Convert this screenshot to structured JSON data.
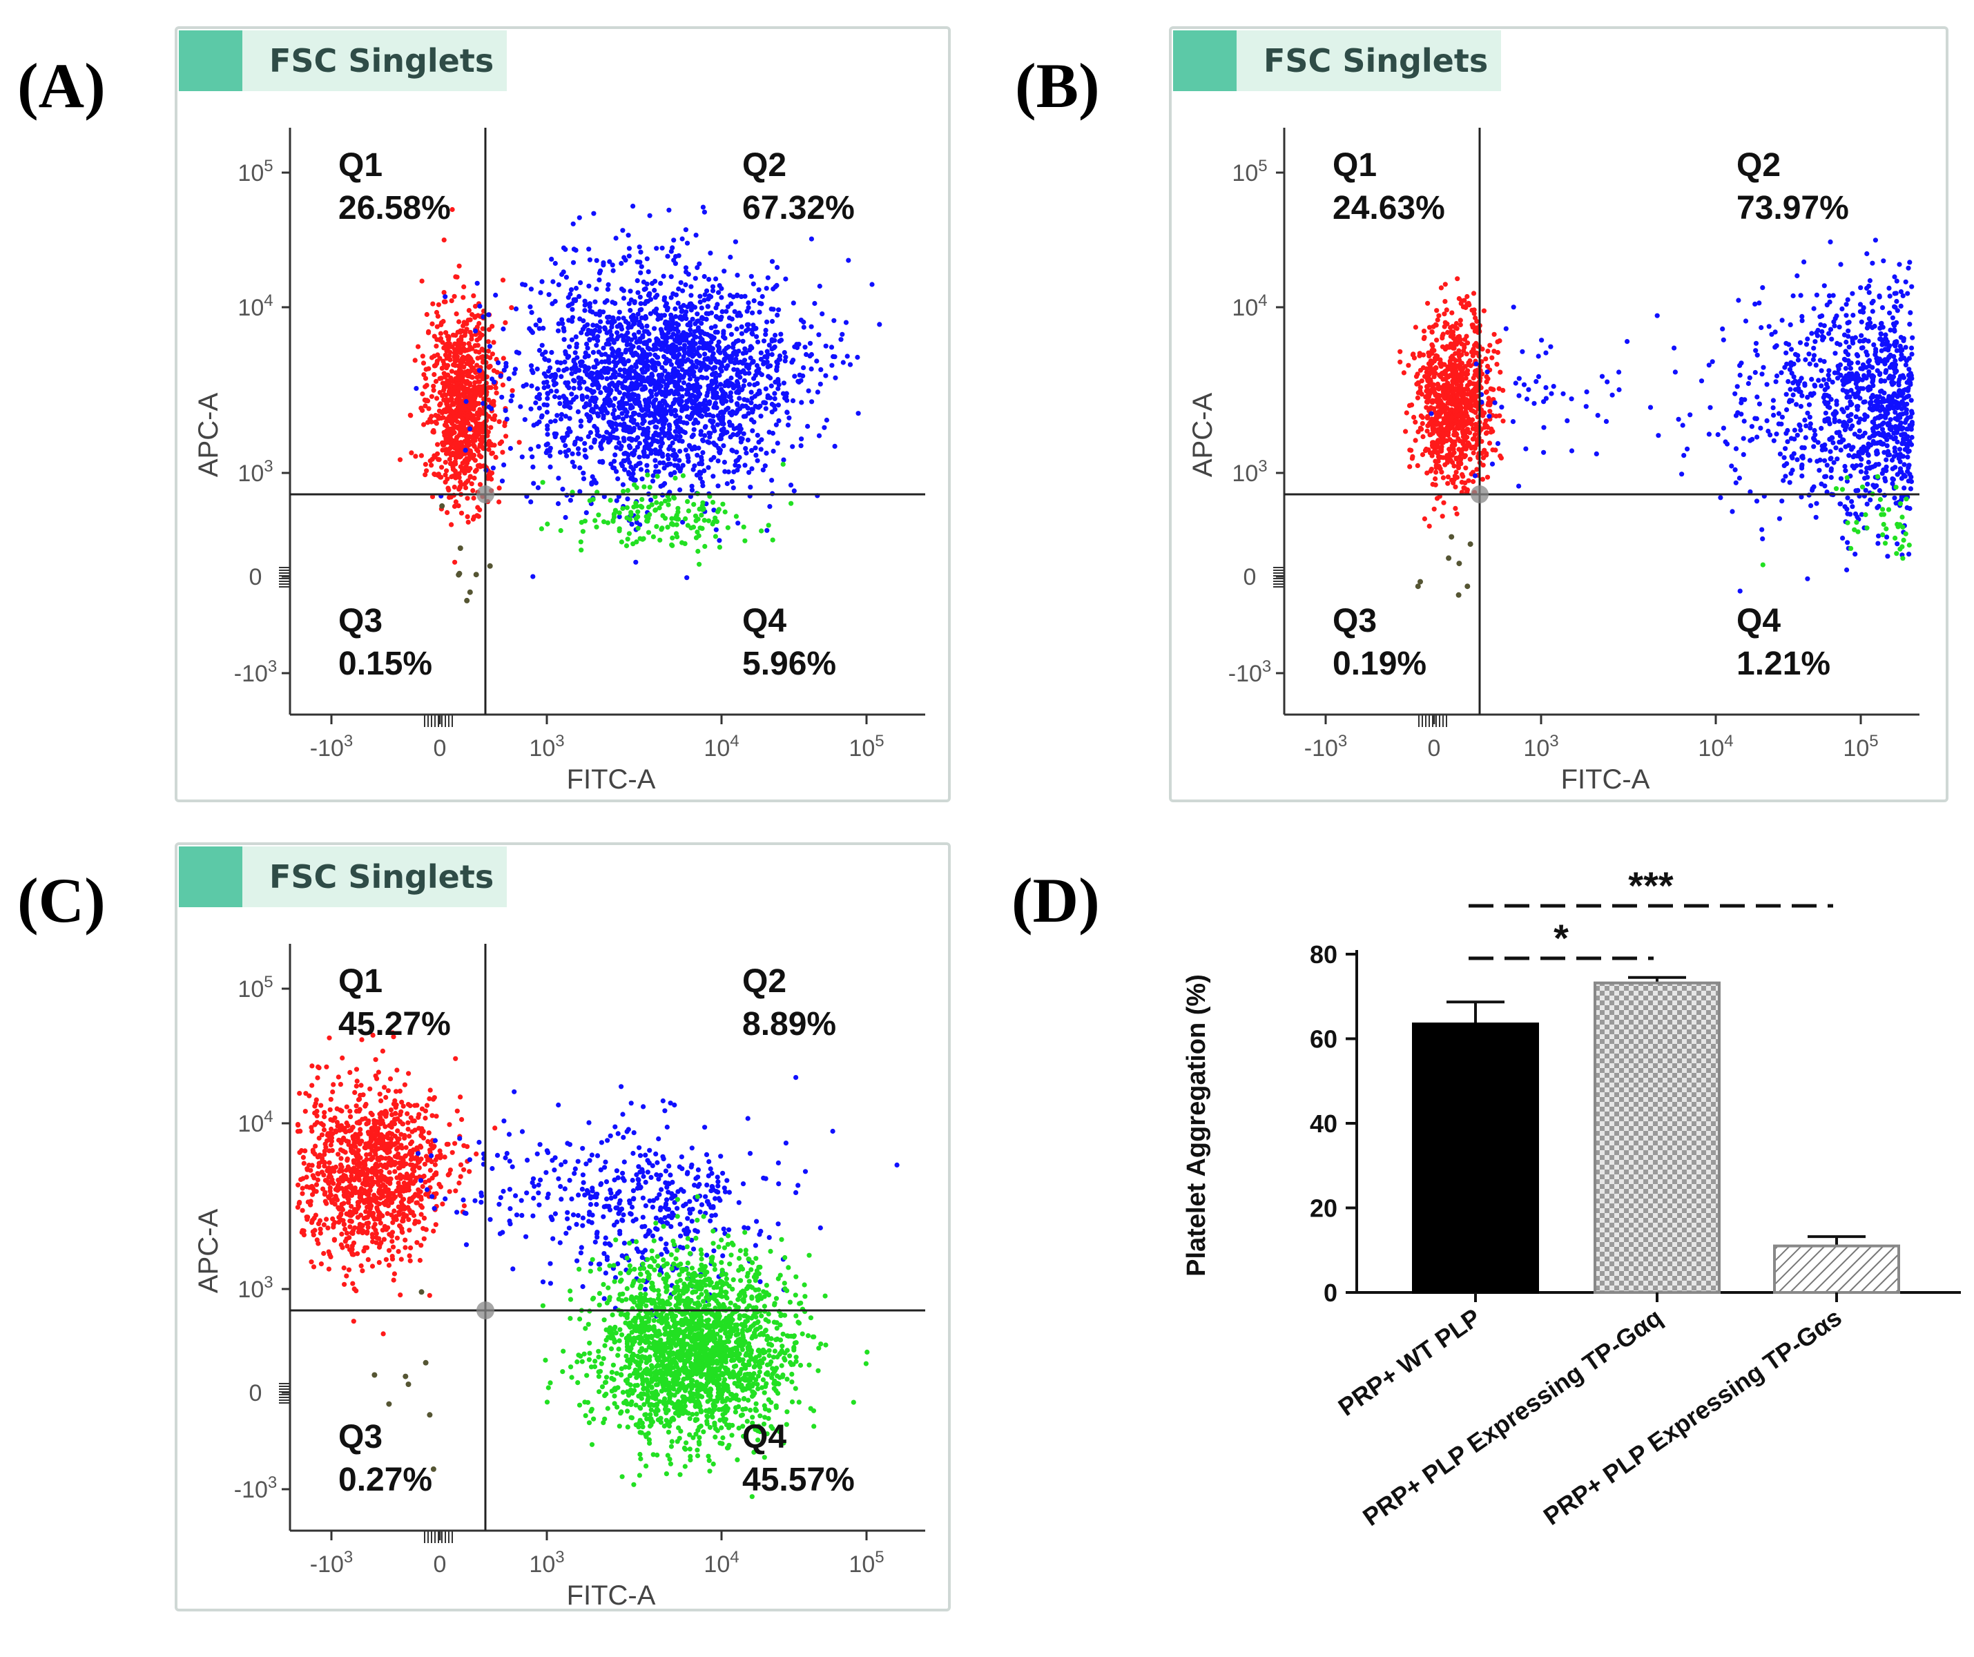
{
  "figure": {
    "panels": [
      {
        "label": "(A)",
        "header": "FSC Singlets"
      },
      {
        "label": "(B)",
        "header": "FSC Singlets"
      },
      {
        "label": "(C)",
        "header": "FSC Singlets"
      },
      {
        "label": "(D)"
      }
    ]
  },
  "colors": {
    "q1": "#ff1a1a",
    "q2": "#1010ff",
    "q3": "#555533",
    "q4": "#22e022",
    "header_tab": "#5cc9a7",
    "header_bg": "#dff3ea",
    "frame": "#cfd8d5"
  },
  "chart_data": [
    {
      "type": "scatter",
      "title": "FSC Singlets",
      "xlabel": "FITC-A",
      "ylabel": "APC-A",
      "x_tick_labels": [
        "-10^3",
        "0",
        "10^3",
        "10^4",
        "10^5"
      ],
      "y_tick_labels": [
        "10^5",
        "10^4",
        "10^3",
        "0",
        "-10^3"
      ],
      "quadrants": [
        {
          "name": "Q1",
          "value": "26.58%"
        },
        {
          "name": "Q2",
          "value": "67.32%"
        },
        {
          "name": "Q3",
          "value": "0.15%"
        },
        {
          "name": "Q4",
          "value": "5.96%"
        }
      ]
    },
    {
      "type": "scatter",
      "title": "FSC Singlets",
      "xlabel": "FITC-A",
      "ylabel": "APC-A",
      "x_tick_labels": [
        "-10^3",
        "0",
        "10^3",
        "10^4",
        "10^5"
      ],
      "y_tick_labels": [
        "10^5",
        "10^4",
        "10^3",
        "0",
        "-10^3"
      ],
      "quadrants": [
        {
          "name": "Q1",
          "value": "24.63%"
        },
        {
          "name": "Q2",
          "value": "73.97%"
        },
        {
          "name": "Q3",
          "value": "0.19%"
        },
        {
          "name": "Q4",
          "value": "1.21%"
        }
      ]
    },
    {
      "type": "scatter",
      "title": "FSC Singlets",
      "xlabel": "FITC-A",
      "ylabel": "APC-A",
      "x_tick_labels": [
        "-10^3",
        "0",
        "10^3",
        "10^4",
        "10^5"
      ],
      "y_tick_labels": [
        "10^5",
        "10^4",
        "10^3",
        "0",
        "-10^3"
      ],
      "quadrants": [
        {
          "name": "Q1",
          "value": "45.27%"
        },
        {
          "name": "Q2",
          "value": "8.89%"
        },
        {
          "name": "Q3",
          "value": "0.27%"
        },
        {
          "name": "Q4",
          "value": "45.57%"
        }
      ]
    },
    {
      "type": "bar",
      "title": "",
      "xlabel": "",
      "ylabel": "Platelet Aggregation (%)",
      "ylim": [
        0,
        80
      ],
      "yticks": [
        0,
        20,
        40,
        60,
        80
      ],
      "categories": [
        "PRP+ WT PLP",
        "PRP+ PLP Expressing TP-Gαq",
        "PRP+ PLP Expressing TP-Gαs"
      ],
      "values": [
        63.5,
        73.2,
        11
      ],
      "errors": [
        5.2,
        1.3,
        2.2
      ],
      "fills": [
        "solid",
        "checker",
        "hatch"
      ],
      "significance": [
        {
          "from": 0,
          "to": 1,
          "label": "*"
        },
        {
          "from": 0,
          "to": 2,
          "label": "***"
        }
      ]
    }
  ]
}
